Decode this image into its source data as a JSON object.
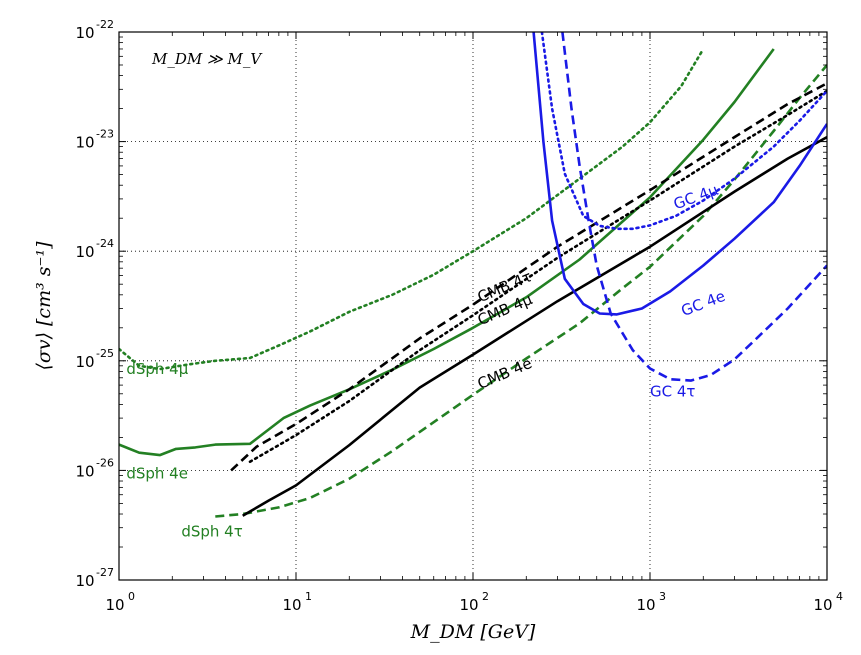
{
  "chart_data": {
    "type": "line",
    "xscale": "log",
    "yscale": "log",
    "xlim": [
      1,
      10000
    ],
    "ylim": [
      1e-27,
      1e-22
    ],
    "grid": true,
    "xlabel": "M_DM [GeV]",
    "ylabel": "⟨σv⟩ [cm³ s⁻¹]",
    "annotation": "M_DM ≫ M_V",
    "xticks": [
      {
        "base": "10",
        "exp": "0",
        "value": 1
      },
      {
        "base": "10",
        "exp": "1",
        "value": 10
      },
      {
        "base": "10",
        "exp": "2",
        "value": 100
      },
      {
        "base": "10",
        "exp": "3",
        "value": 1000
      },
      {
        "base": "10",
        "exp": "4",
        "value": 10000
      }
    ],
    "yticks": [
      {
        "base": "10",
        "exp": "-27",
        "value": 1e-27
      },
      {
        "base": "10",
        "exp": "-26",
        "value": 1e-26
      },
      {
        "base": "10",
        "exp": "-25",
        "value": 1e-25
      },
      {
        "base": "10",
        "exp": "-24",
        "value": 1e-24
      },
      {
        "base": "10",
        "exp": "-23",
        "value": 1e-23
      },
      {
        "base": "10",
        "exp": "-22",
        "value": 1e-22
      }
    ],
    "series": [
      {
        "name": "dSph 4μ",
        "color": "#238023",
        "dash": "dot",
        "x": [
          1,
          1.3,
          1.7,
          2.5,
          3.5,
          5.5,
          8,
          12,
          20,
          35,
          60,
          100,
          200,
          400,
          700,
          1000,
          1500,
          2000
        ],
        "y": [
          1.28e-25,
          9e-26,
          8.4e-26,
          9.3e-26,
          1e-25,
          1.06e-25,
          1.38e-25,
          1.85e-25,
          2.8e-25,
          4e-25,
          6.1e-25,
          1e-24,
          2e-24,
          4.6e-24,
          9e-24,
          1.5e-23,
          3.2e-23,
          7e-23
        ]
      },
      {
        "name": "dSph 4e",
        "color": "#238023",
        "dash": "solid",
        "x": [
          1,
          1.3,
          1.7,
          2.1,
          2.7,
          3.5,
          5.5,
          8.5,
          12,
          20,
          35,
          60,
          100,
          200,
          400,
          1000,
          2000,
          3000,
          5000
        ],
        "y": [
          1.72e-26,
          1.45e-26,
          1.38e-26,
          1.57e-26,
          1.62e-26,
          1.72e-26,
          1.75e-26,
          3e-26,
          3.9e-26,
          5.5e-26,
          8.3e-26,
          1.28e-25,
          2e-25,
          3.8e-25,
          8.4e-25,
          3.1e-24,
          1.04e-23,
          2.3e-23,
          7e-23
        ]
      },
      {
        "name": "dSph 4τ",
        "color": "#238023",
        "dash": "dash",
        "x": [
          3.5,
          5,
          8,
          12,
          20,
          35,
          60,
          100,
          200,
          400,
          700,
          1000,
          2000,
          3000,
          5000,
          7000,
          10000
        ],
        "y": [
          3.8e-27,
          4e-27,
          4.6e-27,
          5.6e-27,
          8.4e-27,
          1.5e-26,
          2.75e-26,
          4.9e-26,
          1.05e-25,
          2.2e-25,
          4.6e-25,
          7.2e-25,
          2.1e-24,
          4.5e-24,
          1.25e-23,
          2.5e-23,
          5e-23
        ]
      },
      {
        "name": "CMB 4τ",
        "color": "#000000",
        "dash": "dash",
        "x": [
          4.3,
          6,
          10,
          20,
          50,
          100,
          300,
          1000,
          3000,
          6000,
          10000
        ],
        "y": [
          1e-26,
          1.65e-26,
          2.65e-26,
          5.5e-26,
          1.6e-25,
          3.25e-25,
          1.1e-24,
          3.6e-24,
          1.1e-23,
          2.2e-23,
          3.4e-23
        ]
      },
      {
        "name": "CMB 4μ",
        "color": "#000000",
        "dash": "dot",
        "x": [
          5.5,
          8,
          10,
          20,
          50,
          100,
          300,
          1000,
          3000,
          6000,
          10000
        ],
        "y": [
          1.2e-26,
          1.7e-26,
          2.1e-26,
          4.3e-26,
          1.25e-25,
          2.6e-25,
          8.7e-25,
          2.9e-24,
          9e-24,
          1.75e-23,
          2.9e-23
        ]
      },
      {
        "name": "CMB 4e",
        "color": "#000000",
        "dash": "solid",
        "x": [
          5,
          7,
          10,
          20,
          50,
          100,
          300,
          1000,
          3000,
          6000,
          10000
        ],
        "y": [
          3.85e-27,
          5.3e-27,
          7.3e-27,
          1.7e-26,
          5.7e-26,
          1.14e-25,
          3.5e-25,
          1.1e-24,
          3.5e-24,
          7e-24,
          1.1e-23
        ]
      },
      {
        "name": "GC 4e",
        "color": "#1a1ae6",
        "dash": "solid",
        "x": [
          220,
          250,
          280,
          330,
          420,
          520,
          650,
          900,
          1300,
          2000,
          3000,
          5000,
          7000,
          10000
        ],
        "y": [
          1e-22,
          1e-23,
          1.9e-24,
          5.6e-25,
          3.3e-25,
          2.7e-25,
          2.65e-25,
          3e-25,
          4.3e-25,
          7.4e-25,
          1.3e-24,
          2.8e-24,
          6e-24,
          1.45e-23
        ]
      },
      {
        "name": "GC 4μ",
        "color": "#1a1ae6",
        "dash": "dot",
        "x": [
          245,
          280,
          330,
          420,
          520,
          650,
          800,
          1000,
          1400,
          2000,
          3000,
          5000,
          7000,
          10000
        ],
        "y": [
          1e-22,
          2e-23,
          5.1e-24,
          2.1e-24,
          1.7e-24,
          1.6e-24,
          1.6e-24,
          1.72e-24,
          2.1e-24,
          2.9e-24,
          4.6e-24,
          9e-24,
          1.55e-23,
          2.9e-23
        ]
      },
      {
        "name": "GC 4τ",
        "color": "#1a1ae6",
        "dash": "dash",
        "x": [
          320,
          360,
          400,
          450,
          500,
          600,
          800,
          1000,
          1300,
          1700,
          2200,
          3000,
          4000,
          6000,
          10000
        ],
        "y": [
          1e-22,
          2e-23,
          6e-24,
          1.9e-24,
          7.4e-25,
          2.7e-25,
          1.25e-25,
          8.5e-26,
          6.8e-26,
          6.6e-26,
          7.4e-26,
          1.03e-25,
          1.6e-25,
          3e-25,
          7.4e-25
        ]
      }
    ]
  },
  "label_positions": {
    "dSph 4μ": {
      "x": 1.1,
      "y": 7.6e-26,
      "rot": 0
    },
    "dSph 4e": {
      "x": 1.1,
      "y": 8.4e-27,
      "rot": 0
    },
    "dSph 4τ": {
      "x": 2.25,
      "y": 2.5e-27,
      "rot": 0
    },
    "CMB 4τ": {
      "x": 110,
      "y": 3.4e-25,
      "rot": -23
    },
    "CMB 4μ": {
      "x": 110,
      "y": 2.1e-25,
      "rot": -23
    },
    "CMB 4e": {
      "x": 110,
      "y": 5.5e-26,
      "rot": -23
    },
    "GC 4e": {
      "x": 1550,
      "y": 2.55e-25,
      "rot": -21
    },
    "GC 4μ": {
      "x": 1400,
      "y": 2.4e-24,
      "rot": -20
    },
    "GC 4τ": {
      "x": 1000,
      "y": 4.7e-26,
      "rot": 0
    }
  }
}
